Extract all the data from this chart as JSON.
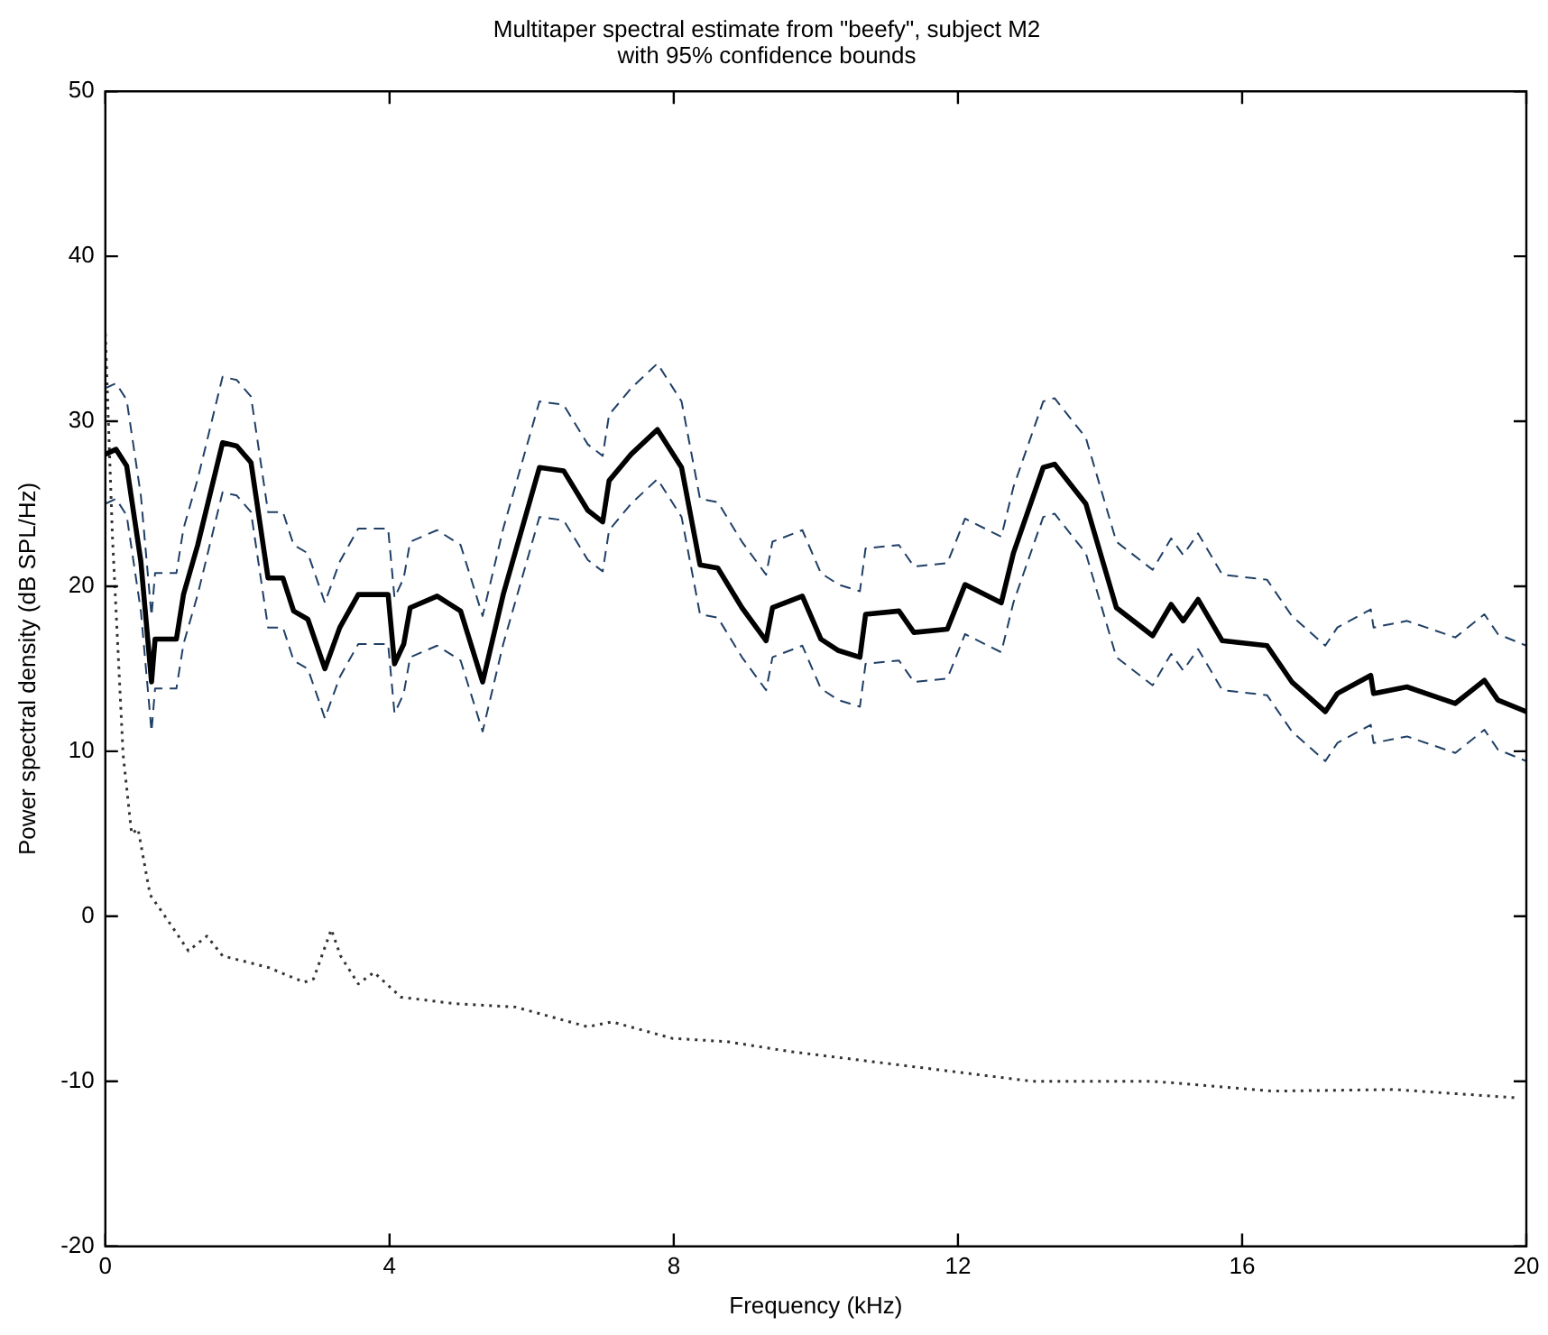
{
  "chart_data": {
    "type": "line",
    "title": "Multitaper spectral estimate from \"beefy\", subject M2\nwith 95% confidence bounds",
    "xlabel": "Frequency (kHz)",
    "ylabel": "Power spectral density (dB SPL/Hz)",
    "xlim": [
      0,
      20
    ],
    "xticks": [
      0,
      4,
      8,
      12,
      16,
      20
    ],
    "ylim": [
      -20,
      50
    ],
    "yticks": [
      -20,
      -10,
      0,
      10,
      20,
      30,
      40,
      50
    ],
    "grid": false,
    "legend": false,
    "marker": "none",
    "series": [
      {
        "color": "#000000",
        "line_style": "solid",
        "x": [
          0,
          0.15,
          0.3,
          0.5,
          0.65,
          0.7,
          1.0,
          1.1,
          1.3,
          1.65,
          1.85,
          2.05,
          2.29,
          2.5,
          2.65,
          2.85,
          3.09,
          3.3,
          3.56,
          3.98,
          4.07,
          4.2,
          4.29,
          4.67,
          5.0,
          5.31,
          5.6,
          6.11,
          6.45,
          6.79,
          7.0,
          7.09,
          7.4,
          7.77,
          8.11,
          8.37,
          8.62,
          8.96,
          9.3,
          9.39,
          9.81,
          10.07,
          10.32,
          10.62,
          10.7,
          11.17,
          11.38,
          11.85,
          12.1,
          12.61,
          12.78,
          13.2,
          13.36,
          13.8,
          14.23,
          14.74,
          15.0,
          15.17,
          15.38,
          15.72,
          16.35,
          16.7,
          17.17,
          17.34,
          17.81,
          17.85,
          18.32,
          19.0,
          19.41,
          19.6,
          20
        ],
        "values": [
          28,
          28.3,
          27.3,
          21.5,
          14.2,
          16.8,
          16.8,
          19.5,
          22.5,
          28.7,
          28.5,
          27.5,
          20.5,
          20.5,
          18.5,
          18,
          15,
          17.5,
          19.5,
          19.5,
          15.3,
          16.5,
          18.7,
          19.4,
          18.5,
          14.2,
          19.5,
          27.2,
          27,
          24.6,
          23.9,
          26.4,
          28,
          29.5,
          27.2,
          21.3,
          21.1,
          18.7,
          16.7,
          18.7,
          19.4,
          16.8,
          16.1,
          15.7,
          18.3,
          18.5,
          17.2,
          17.4,
          20.1,
          19,
          22,
          27.2,
          27.4,
          25,
          18.7,
          17,
          18.9,
          17.9,
          19.2,
          16.7,
          16.4,
          14.2,
          12.4,
          13.5,
          14.6,
          13.5,
          13.9,
          12.9,
          14.3,
          13.1,
          12.4
        ]
      },
      {
        "color": "#1f3f66",
        "line_style": "dashed",
        "x": [
          0,
          0.15,
          0.3,
          0.5,
          0.65,
          0.7,
          1.0,
          1.1,
          1.3,
          1.65,
          1.85,
          2.05,
          2.29,
          2.5,
          2.65,
          2.85,
          3.09,
          3.3,
          3.56,
          3.98,
          4.07,
          4.2,
          4.29,
          4.67,
          5.0,
          5.31,
          5.6,
          6.11,
          6.45,
          6.79,
          7.0,
          7.09,
          7.4,
          7.77,
          8.11,
          8.37,
          8.62,
          8.96,
          9.3,
          9.39,
          9.81,
          10.07,
          10.32,
          10.62,
          10.7,
          11.17,
          11.38,
          11.85,
          12.1,
          12.61,
          12.78,
          13.2,
          13.36,
          13.8,
          14.23,
          14.74,
          15.0,
          15.17,
          15.38,
          15.72,
          16.35,
          16.7,
          17.17,
          17.34,
          17.81,
          17.85,
          18.32,
          19.0,
          19.41,
          19.6,
          20
        ],
        "values": [
          32,
          32.3,
          31.3,
          25.5,
          18.2,
          20.8,
          20.8,
          23.5,
          26.5,
          32.7,
          32.5,
          31.5,
          24.5,
          24.5,
          22.5,
          22,
          19,
          21.5,
          23.5,
          23.5,
          19.3,
          20.5,
          22.7,
          23.4,
          22.5,
          18.2,
          23.5,
          31.2,
          31,
          28.6,
          27.9,
          30.4,
          32,
          33.5,
          31.2,
          25.3,
          25.1,
          22.7,
          20.7,
          22.7,
          23.4,
          20.8,
          20.1,
          19.7,
          22.3,
          22.5,
          21.2,
          21.4,
          24.1,
          23,
          26,
          31.2,
          31.4,
          29,
          22.7,
          21,
          22.9,
          21.9,
          23.2,
          20.7,
          20.4,
          18.2,
          16.4,
          17.5,
          18.6,
          17.5,
          17.9,
          16.9,
          18.3,
          17.1,
          16.4
        ]
      },
      {
        "color": "#1f3f66",
        "line_style": "dashed",
        "x": [
          0,
          0.15,
          0.3,
          0.5,
          0.65,
          0.7,
          1.0,
          1.1,
          1.3,
          1.65,
          1.85,
          2.05,
          2.29,
          2.5,
          2.65,
          2.85,
          3.09,
          3.3,
          3.56,
          3.98,
          4.07,
          4.2,
          4.29,
          4.67,
          5.0,
          5.31,
          5.6,
          6.11,
          6.45,
          6.79,
          7.0,
          7.09,
          7.4,
          7.77,
          8.11,
          8.37,
          8.62,
          8.96,
          9.3,
          9.39,
          9.81,
          10.07,
          10.32,
          10.62,
          10.7,
          11.17,
          11.38,
          11.85,
          12.1,
          12.61,
          12.78,
          13.2,
          13.36,
          13.8,
          14.23,
          14.74,
          15.0,
          15.17,
          15.38,
          15.72,
          16.35,
          16.7,
          17.17,
          17.34,
          17.81,
          17.85,
          18.32,
          19.0,
          19.41,
          19.6,
          20
        ],
        "values": [
          25,
          25.3,
          24.3,
          18.5,
          11.2,
          13.8,
          13.8,
          16.5,
          19.5,
          25.7,
          25.5,
          24.5,
          17.5,
          17.5,
          15.5,
          15,
          12,
          14.5,
          16.5,
          16.5,
          12.3,
          13.5,
          15.7,
          16.4,
          15.5,
          11.2,
          16.5,
          24.2,
          24,
          21.6,
          20.9,
          23.4,
          25,
          26.5,
          24.2,
          18.3,
          18.1,
          15.7,
          13.7,
          15.7,
          16.4,
          13.8,
          13.1,
          12.7,
          15.3,
          15.5,
          14.2,
          14.4,
          17.1,
          16,
          19,
          24.2,
          24.4,
          22,
          15.7,
          14,
          15.9,
          14.9,
          16.2,
          13.7,
          13.4,
          11.2,
          9.4,
          10.5,
          11.6,
          10.5,
          10.9,
          9.9,
          11.3,
          10.1,
          9.4
        ]
      },
      {
        "color": "#333333",
        "line_style": "dotted",
        "x": [
          0,
          0.1,
          0.25,
          0.37,
          0.46,
          0.63,
          0.84,
          1.17,
          1.43,
          1.65,
          2.29,
          2.8,
          2.93,
          3.18,
          3.31,
          3.56,
          3.78,
          4.16,
          4.92,
          5.77,
          6.79,
          7.13,
          7.98,
          8.75,
          9.64,
          11.34,
          13.04,
          14.74,
          16.44,
          18.14,
          19.85
        ],
        "values": [
          35.3,
          23,
          9.8,
          5,
          5.3,
          1.3,
          0,
          -2.1,
          -1.2,
          -2.4,
          -3.1,
          -4,
          -3.8,
          -0.8,
          -2.4,
          -4.1,
          -3.4,
          -4.9,
          -5.3,
          -5.5,
          -6.7,
          -6.4,
          -7.4,
          -7.6,
          -8.2,
          -9.1,
          -10,
          -10,
          -10.6,
          -10.5,
          -11
        ]
      }
    ]
  }
}
